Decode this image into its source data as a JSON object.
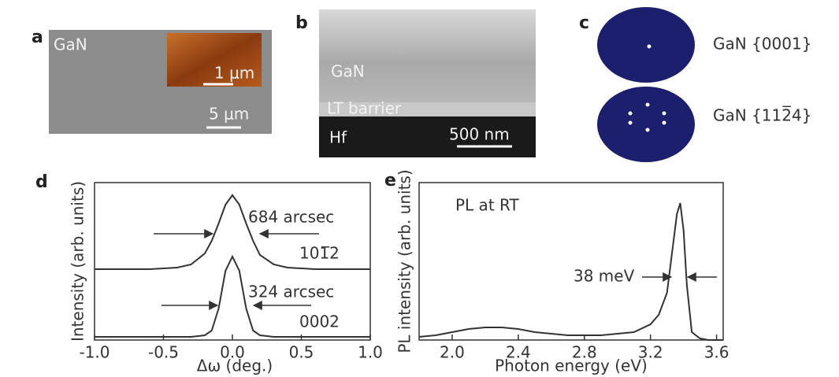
{
  "panels": {
    "a": {
      "label": "a",
      "material": "GaN",
      "inset_scale": "1 μm",
      "scale": "5 μm"
    },
    "b": {
      "label": "b",
      "layers": [
        "GaN",
        "LT barrier",
        "Hf"
      ],
      "scale": "500 nm"
    },
    "c": {
      "label": "c",
      "poles": [
        "GaN {0001}",
        "GaN {112̅4}"
      ]
    }
  },
  "chart_data": [
    {
      "type": "line",
      "panel_label": "d",
      "x_label": "Δω (deg.)",
      "y_label": "Intensity (arb. units)",
      "xlim": [
        -1.0,
        1.0
      ],
      "ylim": [
        0,
        1
      ],
      "xticks": [
        {
          "value": -1.0,
          "label": "-1.0"
        },
        -0.5,
        {
          "value": 0,
          "label": "0.0"
        },
        0.5,
        {
          "value": 1.0,
          "label": "1.0"
        }
      ],
      "x": [
        -1.0,
        -0.8,
        -0.6,
        -0.4,
        -0.3,
        -0.2,
        -0.15,
        -0.1,
        -0.05,
        0,
        0.05,
        0.1,
        0.15,
        0.2,
        0.3,
        0.4,
        0.6,
        0.8,
        1.0
      ],
      "series": [
        {
          "name": "101̅2",
          "color": "#333333",
          "values": [
            0.45,
            0.45,
            0.45,
            0.46,
            0.48,
            0.55,
            0.63,
            0.74,
            0.86,
            0.92,
            0.86,
            0.74,
            0.63,
            0.54,
            0.48,
            0.46,
            0.45,
            0.45,
            0.45
          ]
        },
        {
          "name": "0002",
          "color": "#333333",
          "values": [
            0.02,
            0.02,
            0.02,
            0.02,
            0.02,
            0.03,
            0.06,
            0.2,
            0.44,
            0.53,
            0.44,
            0.2,
            0.06,
            0.03,
            0.02,
            0.02,
            0.02,
            0.02,
            0.02
          ]
        }
      ],
      "annotations": [
        "684 arcsec",
        "324 arcsec"
      ]
    },
    {
      "type": "line",
      "panel_label": "e",
      "x_label": "Photon energy (eV)",
      "y_label": "PL intensity (arb. units)",
      "xlim": [
        1.8,
        3.64
      ],
      "ylim": [
        0,
        1
      ],
      "xticks": [
        {
          "value": 2.0,
          "label": "2.0"
        },
        2.4,
        2.8,
        3.2,
        3.6
      ],
      "x": [
        1.8,
        1.9,
        2.0,
        2.1,
        2.2,
        2.3,
        2.4,
        2.5,
        2.6,
        2.7,
        2.8,
        2.9,
        3.0,
        3.1,
        3.2,
        3.25,
        3.3,
        3.33,
        3.36,
        3.38,
        3.4,
        3.42,
        3.45,
        3.5,
        3.55,
        3.64
      ],
      "values": [
        0.02,
        0.03,
        0.05,
        0.07,
        0.08,
        0.08,
        0.07,
        0.05,
        0.04,
        0.03,
        0.03,
        0.03,
        0.04,
        0.05,
        0.1,
        0.16,
        0.3,
        0.55,
        0.8,
        0.87,
        0.7,
        0.35,
        0.05,
        0.01,
        0.0,
        0.0
      ],
      "color": "#333333",
      "annotations": [
        "PL at RT",
        "38 meV"
      ]
    }
  ]
}
